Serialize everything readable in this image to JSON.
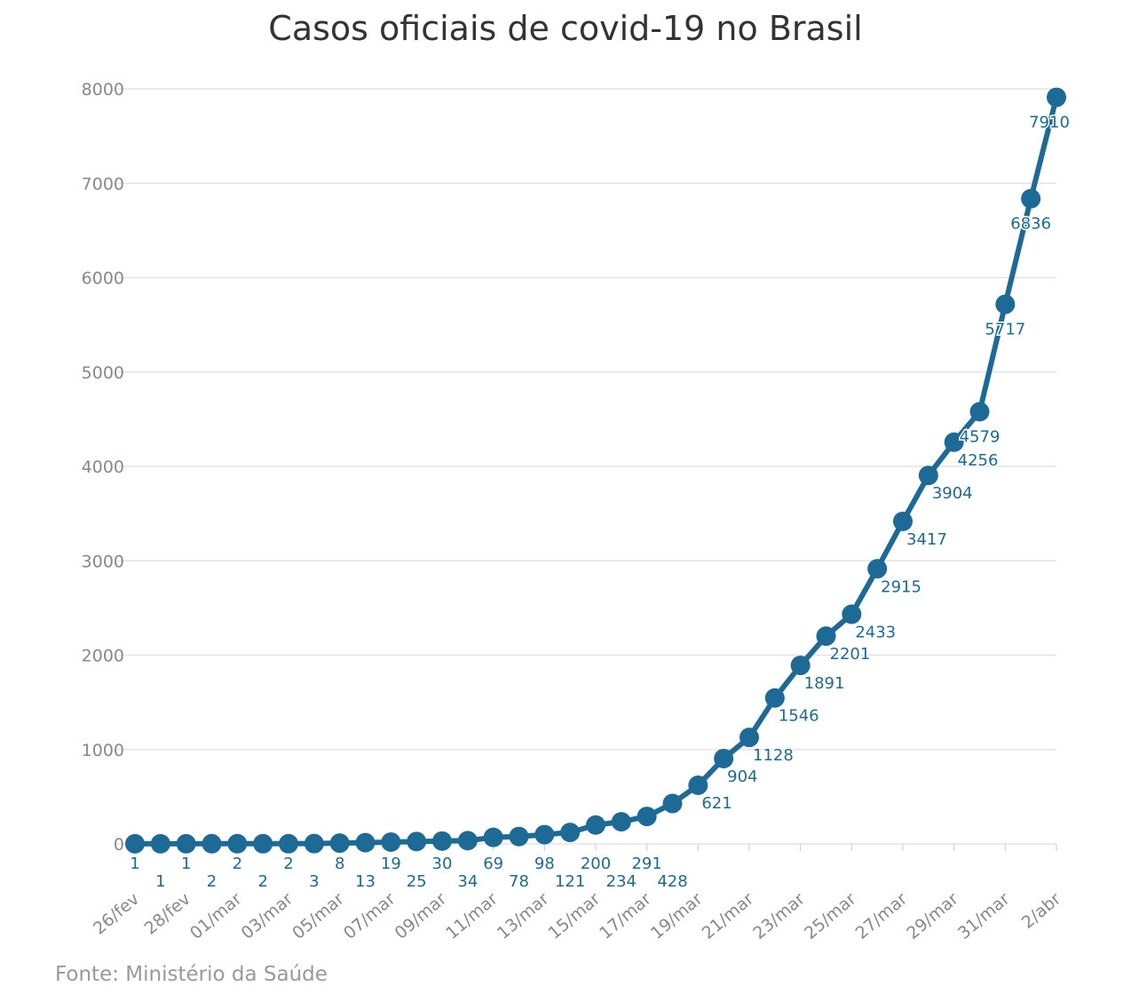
{
  "chart_data": {
    "type": "line",
    "title": "Casos oficiais de covid-19 no Brasil",
    "source": "Fonte: Ministério da Saúde",
    "series_color": "#1d6a96",
    "x": [
      "26/fev",
      "27/fev",
      "28/fev",
      "29/fev",
      "01/mar",
      "02/mar",
      "03/mar",
      "04/mar",
      "05/mar",
      "06/mar",
      "07/mar",
      "08/mar",
      "09/mar",
      "10/mar",
      "11/mar",
      "12/mar",
      "13/mar",
      "14/mar",
      "15/mar",
      "16/mar",
      "17/mar",
      "18/mar",
      "19/mar",
      "20/mar",
      "21/mar",
      "22/mar",
      "23/mar",
      "24/mar",
      "25/mar",
      "26/mar",
      "27/mar",
      "28/mar",
      "29/mar",
      "30/mar",
      "31/mar",
      "1/abr",
      "2/abr"
    ],
    "x_tick_labels": [
      "26/fev",
      "28/fev",
      "01/mar",
      "03/mar",
      "05/mar",
      "07/mar",
      "09/mar",
      "11/mar",
      "13/mar",
      "15/mar",
      "17/mar",
      "19/mar",
      "21/mar",
      "23/mar",
      "25/mar",
      "27/mar",
      "29/mar",
      "31/mar",
      "2/abr"
    ],
    "values": [
      1,
      1,
      1,
      2,
      2,
      2,
      2,
      3,
      8,
      13,
      19,
      25,
      30,
      34,
      69,
      78,
      98,
      121,
      200,
      234,
      291,
      428,
      621,
      904,
      1128,
      1546,
      1891,
      2201,
      2433,
      2915,
      3417,
      3904,
      4256,
      4579,
      5717,
      6836,
      7910
    ],
    "ylim": [
      0,
      8000
    ],
    "y_ticks": [
      0,
      1000,
      2000,
      3000,
      4000,
      5000,
      6000,
      7000,
      8000
    ],
    "grid": true,
    "data_labels": true
  }
}
